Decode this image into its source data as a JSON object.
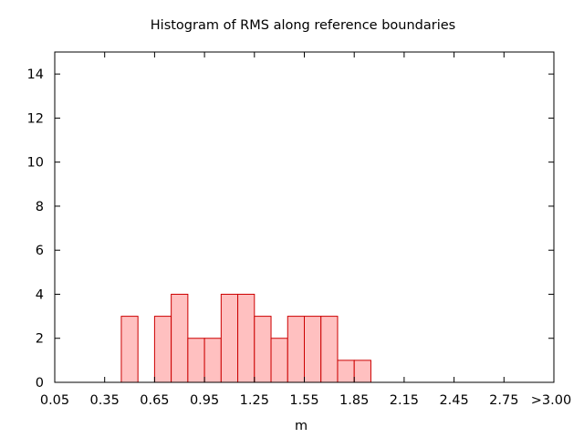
{
  "chart_data": {
    "type": "bar",
    "title": "Histogram of RMS along reference boundaries",
    "xlabel": "m",
    "ylabel": "",
    "xlim": [
      0.05,
      3.05
    ],
    "ylim": [
      0,
      15
    ],
    "bin_width": 0.1,
    "x_ticks": [
      {
        "value": 0.05,
        "label": "0.05"
      },
      {
        "value": 0.35,
        "label": "0.35"
      },
      {
        "value": 0.65,
        "label": "0.65"
      },
      {
        "value": 0.95,
        "label": "0.95"
      },
      {
        "value": 1.25,
        "label": "1.25"
      },
      {
        "value": 1.55,
        "label": "1.55"
      },
      {
        "value": 1.85,
        "label": "1.85"
      },
      {
        "value": 2.15,
        "label": "2.15"
      },
      {
        "value": 2.45,
        "label": "2.45"
      },
      {
        "value": 2.75,
        "label": "2.75"
      },
      {
        "value": 3.05,
        "label": ">3.00"
      }
    ],
    "y_ticks": [
      {
        "value": 0,
        "label": "0"
      },
      {
        "value": 2,
        "label": "2"
      },
      {
        "value": 4,
        "label": "4"
      },
      {
        "value": 6,
        "label": "6"
      },
      {
        "value": 8,
        "label": "8"
      },
      {
        "value": 10,
        "label": "10"
      },
      {
        "value": 12,
        "label": "12"
      },
      {
        "value": 14,
        "label": "14"
      }
    ],
    "bins": [
      {
        "start": 0.45,
        "end": 0.55,
        "count": 3
      },
      {
        "start": 0.65,
        "end": 0.75,
        "count": 3
      },
      {
        "start": 0.75,
        "end": 0.85,
        "count": 4
      },
      {
        "start": 0.85,
        "end": 0.95,
        "count": 2
      },
      {
        "start": 0.95,
        "end": 1.05,
        "count": 2
      },
      {
        "start": 1.05,
        "end": 1.15,
        "count": 4
      },
      {
        "start": 1.15,
        "end": 1.25,
        "count": 4
      },
      {
        "start": 1.25,
        "end": 1.35,
        "count": 3
      },
      {
        "start": 1.35,
        "end": 1.45,
        "count": 2
      },
      {
        "start": 1.45,
        "end": 1.55,
        "count": 3
      },
      {
        "start": 1.55,
        "end": 1.65,
        "count": 3
      },
      {
        "start": 1.65,
        "end": 1.75,
        "count": 3
      },
      {
        "start": 1.75,
        "end": 1.85,
        "count": 1
      },
      {
        "start": 1.85,
        "end": 1.95,
        "count": 1
      }
    ],
    "grid": false,
    "bar_fill": "#ffc0c0",
    "bar_stroke": "#cc0000",
    "axis_color": "#000000"
  }
}
